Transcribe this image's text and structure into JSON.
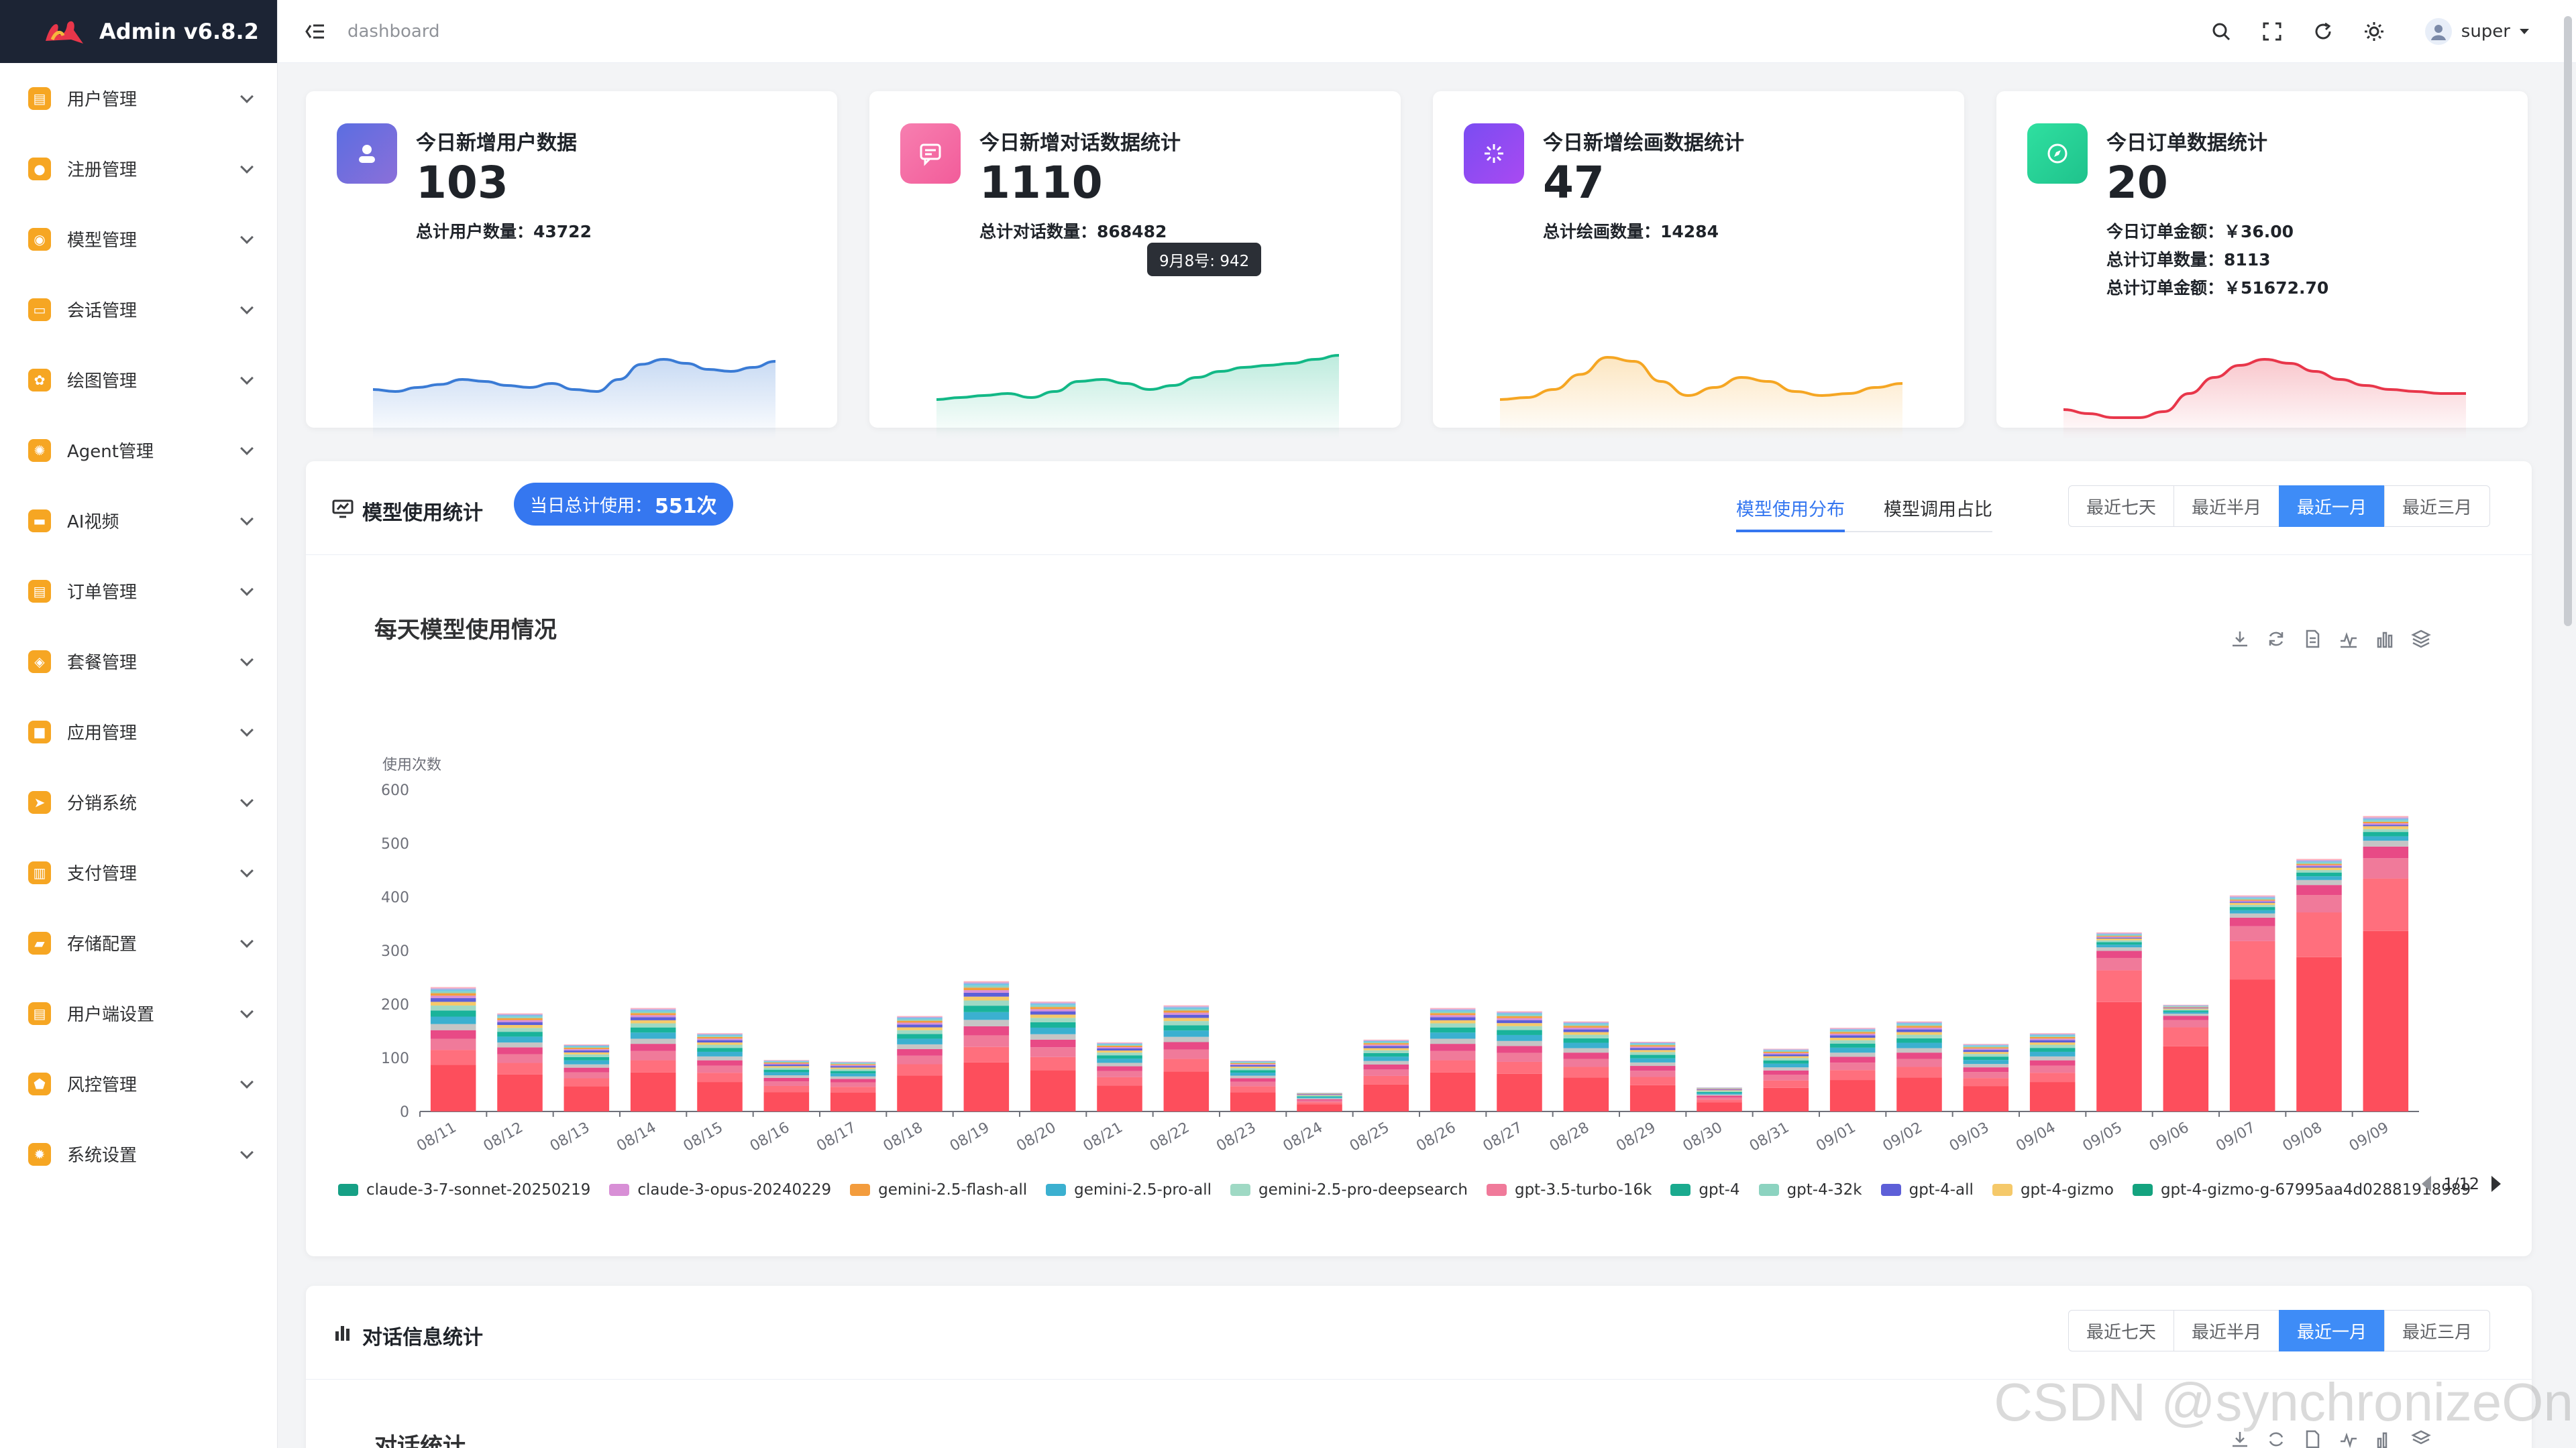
{
  "app": {
    "title": "Admin v6.8.2",
    "breadcrumb": "dashboard",
    "user": "super"
  },
  "sidebar": {
    "items": [
      {
        "label": "用户管理",
        "icon": "user-manage-icon",
        "color": "#f6a623"
      },
      {
        "label": "注册管理",
        "icon": "register-icon",
        "color": "#f6a623"
      },
      {
        "label": "模型管理",
        "icon": "model-icon",
        "color": "#f6a623"
      },
      {
        "label": "会话管理",
        "icon": "chat-icon",
        "color": "#f6a623"
      },
      {
        "label": "绘图管理",
        "icon": "palette-icon",
        "color": "#f6a623"
      },
      {
        "label": "Agent管理",
        "icon": "agent-icon",
        "color": "#f6a623"
      },
      {
        "label": "AI视频",
        "icon": "video-icon",
        "color": "#f6a623"
      },
      {
        "label": "订单管理",
        "icon": "order-icon",
        "color": "#f6a623"
      },
      {
        "label": "套餐管理",
        "icon": "package-icon",
        "color": "#f6a623"
      },
      {
        "label": "应用管理",
        "icon": "apps-icon",
        "color": "#f6a623"
      },
      {
        "label": "分销系统",
        "icon": "distribution-icon",
        "color": "#f6a623"
      },
      {
        "label": "支付管理",
        "icon": "payment-icon",
        "color": "#f6a623"
      },
      {
        "label": "存储配置",
        "icon": "storage-icon",
        "color": "#f6a623"
      },
      {
        "label": "用户端设置",
        "icon": "client-settings-icon",
        "color": "#f6a623"
      },
      {
        "label": "风控管理",
        "icon": "risk-shield-icon",
        "color": "#f6a623"
      },
      {
        "label": "系统设置",
        "icon": "system-gear-icon",
        "color": "#f6a623"
      }
    ]
  },
  "cards": [
    {
      "title": "今日新增用户数据",
      "value": "103",
      "lines": [
        "总计用户数量：43722"
      ],
      "color": "#3a7bd5",
      "iconBg": "#6b6fd8"
    },
    {
      "title": "今日新增对话数据统计",
      "value": "1110",
      "lines": [
        "总计对话数量：868482"
      ],
      "color": "#12b886",
      "iconBg": "#f26aa6",
      "tooltip": "9月8号: 942"
    },
    {
      "title": "今日新增绘画数据统计",
      "value": "47",
      "lines": [
        "总计绘画数量：14284"
      ],
      "color": "#f5a623",
      "iconBg": "#7b4cf0"
    },
    {
      "title": "今日订单数据统计",
      "value": "20",
      "lines": [
        "今日订单金额：￥36.00",
        "总计订单数量：8113",
        "总计订单金额：￥51672.70"
      ],
      "color": "#e8364a",
      "iconBg": "#2fd39a"
    }
  ],
  "model_panel": {
    "title": "模型使用统计",
    "pill_label": "当日总计使用：",
    "pill_value": "551次",
    "tabs": [
      "模型使用分布",
      "模型调用占比"
    ],
    "ranges": [
      "最近七天",
      "最近半月",
      "最近一月",
      "最近三月"
    ],
    "chart_title": "每天模型使用情况",
    "pager": "1/12"
  },
  "dialog_panel": {
    "title": "对话信息统计",
    "ranges": [
      "最近七天",
      "最近半月",
      "最近一月",
      "最近三月"
    ],
    "chart_title": "对话统计"
  },
  "watermark": "CSDN @synchronizeOn",
  "chart_data": {
    "type": "bar",
    "stacked": true,
    "title": "每天模型使用情况",
    "ylabel": "使用次数",
    "ylim": [
      0,
      600
    ],
    "yticks": [
      0,
      100,
      200,
      300,
      400,
      500,
      600
    ],
    "categories": [
      "08/11",
      "08/12",
      "08/13",
      "08/14",
      "08/15",
      "08/16",
      "08/17",
      "08/18",
      "08/19",
      "08/20",
      "08/21",
      "08/22",
      "08/23",
      "08/24",
      "08/25",
      "08/26",
      "08/27",
      "08/28",
      "08/29",
      "08/30",
      "08/31",
      "09/01",
      "09/02",
      "09/03",
      "09/04",
      "09/05",
      "09/06",
      "09/07",
      "09/08",
      "09/09"
    ],
    "totals": [
      232,
      183,
      125,
      193,
      146,
      96,
      93,
      178,
      243,
      205,
      129,
      198,
      95,
      35,
      134,
      193,
      187,
      168,
      130,
      45,
      117,
      156,
      168,
      126,
      146,
      334,
      199,
      403,
      471,
      551
    ],
    "legend": [
      "claude-3-7-sonnet-20250219",
      "claude-3-opus-20240229",
      "gemini-2.5-flash-all",
      "gemini-2.5-pro-all",
      "gemini-2.5-pro-deepsearch",
      "gpt-3.5-turbo-16k",
      "gpt-4",
      "gpt-4-32k",
      "gpt-4-all",
      "gpt-4-gizmo",
      "gpt-4-gizmo-g-67995aa4d02881918989"
    ],
    "legend_colors": [
      "#16a085",
      "#d88fd6",
      "#f39c3d",
      "#3bb0d0",
      "#9fd9c4",
      "#f07a9a",
      "#1aaa8e",
      "#8cd3c0",
      "#5d5fd8",
      "#f5c96a",
      "#14a37f"
    ]
  },
  "sparklines": {
    "users": [
      50,
      48,
      52,
      55,
      60,
      58,
      54,
      52,
      56,
      50,
      48,
      60,
      75,
      80,
      76,
      70,
      68,
      72,
      78
    ],
    "dialogs": [
      40,
      42,
      44,
      46,
      42,
      48,
      58,
      60,
      56,
      50,
      54,
      62,
      68,
      72,
      74,
      76,
      80,
      84
    ],
    "drawings": [
      40,
      42,
      50,
      65,
      82,
      78,
      58,
      44,
      52,
      62,
      58,
      48,
      44,
      46,
      52,
      56
    ],
    "orders": [
      30,
      26,
      22,
      22,
      28,
      46,
      62,
      74,
      80,
      76,
      68,
      60,
      54,
      50,
      48,
      46,
      46
    ]
  }
}
